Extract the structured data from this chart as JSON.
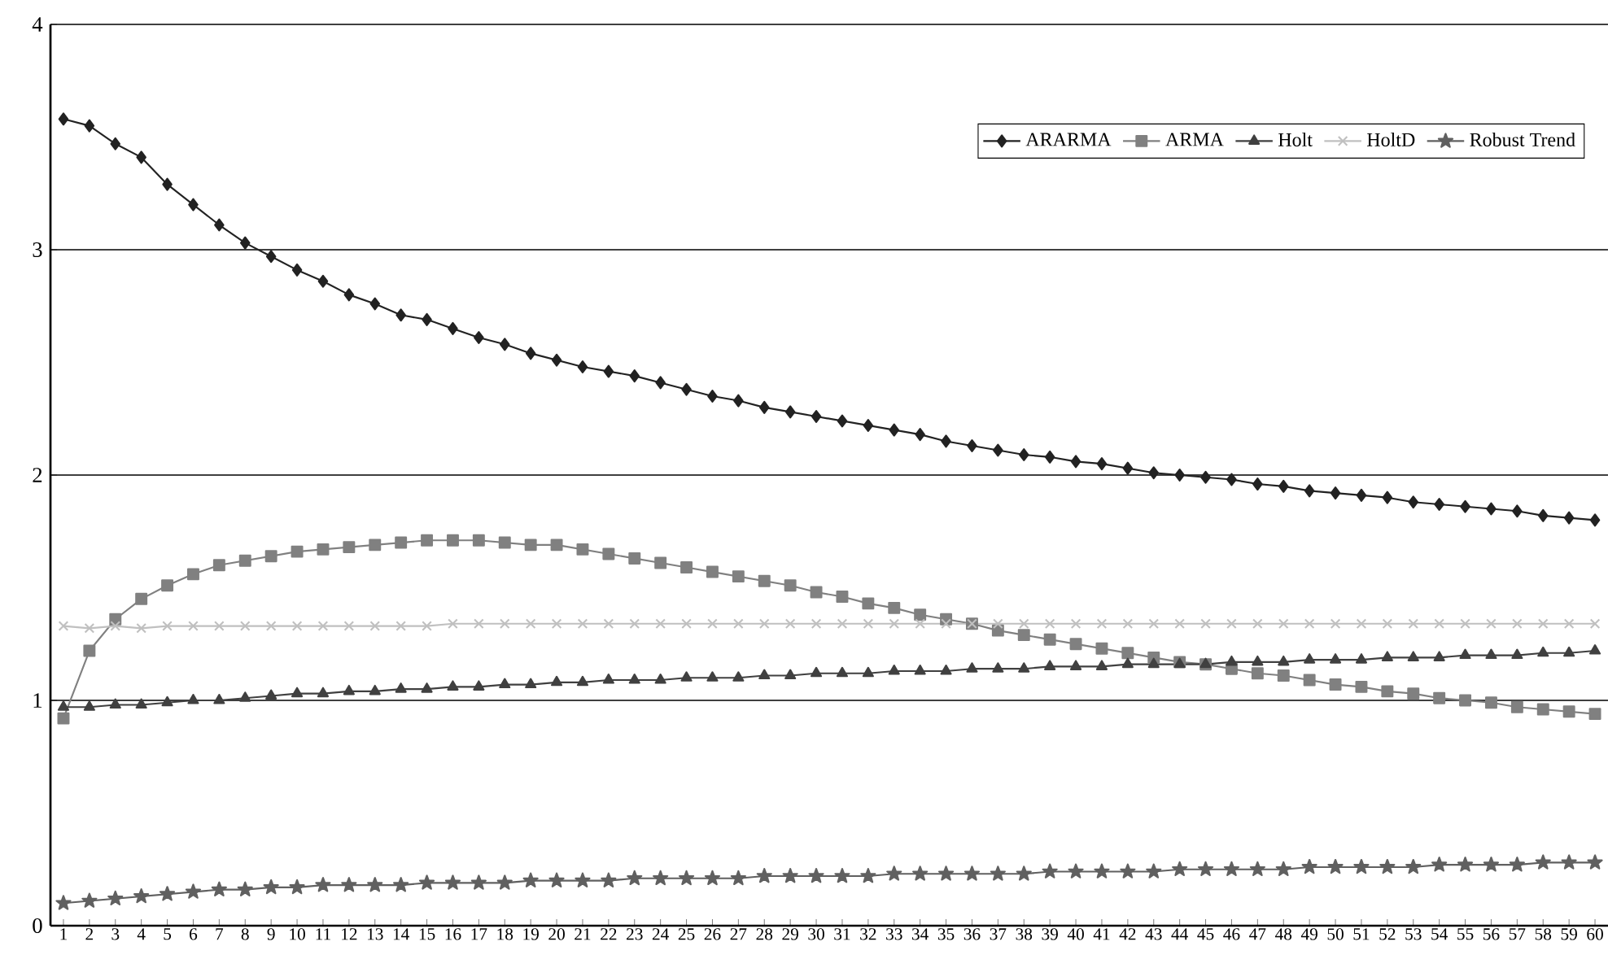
{
  "chart_data": {
    "type": "line",
    "categories": [
      "1",
      "2",
      "3",
      "4",
      "5",
      "6",
      "7",
      "8",
      "9",
      "10",
      "11",
      "12",
      "13",
      "14",
      "15",
      "16",
      "17",
      "18",
      "19",
      "20",
      "21",
      "22",
      "23",
      "24",
      "25",
      "26",
      "27",
      "28",
      "29",
      "30",
      "31",
      "32",
      "33",
      "34",
      "35",
      "36",
      "37",
      "38",
      "39",
      "40",
      "41",
      "42",
      "43",
      "44",
      "45",
      "46",
      "47",
      "48",
      "49",
      "50",
      "51",
      "52",
      "53",
      "54",
      "55",
      "56",
      "57",
      "58",
      "59",
      "60"
    ],
    "series": [
      {
        "name": "ARARMA",
        "color": "#222222",
        "marker": "diamond",
        "values": [
          3.58,
          3.55,
          3.47,
          3.41,
          3.29,
          3.2,
          3.11,
          3.03,
          2.97,
          2.91,
          2.86,
          2.8,
          2.76,
          2.71,
          2.69,
          2.65,
          2.61,
          2.58,
          2.54,
          2.51,
          2.48,
          2.46,
          2.44,
          2.41,
          2.38,
          2.35,
          2.33,
          2.3,
          2.28,
          2.26,
          2.24,
          2.22,
          2.2,
          2.18,
          2.15,
          2.13,
          2.11,
          2.09,
          2.08,
          2.06,
          2.05,
          2.03,
          2.01,
          2.0,
          1.99,
          1.98,
          1.96,
          1.95,
          1.93,
          1.92,
          1.91,
          1.9,
          1.88,
          1.87,
          1.86,
          1.85,
          1.84,
          1.82,
          1.81,
          1.8
        ]
      },
      {
        "name": "ARMA",
        "color": "#808080",
        "marker": "square",
        "values": [
          0.92,
          1.22,
          1.36,
          1.45,
          1.51,
          1.56,
          1.6,
          1.62,
          1.64,
          1.66,
          1.67,
          1.68,
          1.69,
          1.7,
          1.71,
          1.71,
          1.71,
          1.7,
          1.69,
          1.69,
          1.67,
          1.65,
          1.63,
          1.61,
          1.59,
          1.57,
          1.55,
          1.53,
          1.51,
          1.48,
          1.46,
          1.43,
          1.41,
          1.38,
          1.36,
          1.34,
          1.31,
          1.29,
          1.27,
          1.25,
          1.23,
          1.21,
          1.19,
          1.17,
          1.16,
          1.14,
          1.12,
          1.11,
          1.09,
          1.07,
          1.06,
          1.04,
          1.03,
          1.01,
          1.0,
          0.99,
          0.97,
          0.96,
          0.95,
          0.94
        ]
      },
      {
        "name": "Holt",
        "color": "#404040",
        "marker": "triangle",
        "values": [
          0.97,
          0.97,
          0.98,
          0.98,
          0.99,
          1.0,
          1.0,
          1.01,
          1.02,
          1.03,
          1.03,
          1.04,
          1.04,
          1.05,
          1.05,
          1.06,
          1.06,
          1.07,
          1.07,
          1.08,
          1.08,
          1.09,
          1.09,
          1.09,
          1.1,
          1.1,
          1.1,
          1.11,
          1.11,
          1.12,
          1.12,
          1.12,
          1.13,
          1.13,
          1.13,
          1.14,
          1.14,
          1.14,
          1.15,
          1.15,
          1.15,
          1.16,
          1.16,
          1.16,
          1.16,
          1.17,
          1.17,
          1.17,
          1.18,
          1.18,
          1.18,
          1.19,
          1.19,
          1.19,
          1.2,
          1.2,
          1.2,
          1.21,
          1.21,
          1.22
        ]
      },
      {
        "name": "HoltD",
        "color": "#c0c0c0",
        "marker": "cross",
        "values": [
          1.33,
          1.32,
          1.33,
          1.32,
          1.33,
          1.33,
          1.33,
          1.33,
          1.33,
          1.33,
          1.33,
          1.33,
          1.33,
          1.33,
          1.33,
          1.34,
          1.34,
          1.34,
          1.34,
          1.34,
          1.34,
          1.34,
          1.34,
          1.34,
          1.34,
          1.34,
          1.34,
          1.34,
          1.34,
          1.34,
          1.34,
          1.34,
          1.34,
          1.34,
          1.34,
          1.34,
          1.34,
          1.34,
          1.34,
          1.34,
          1.34,
          1.34,
          1.34,
          1.34,
          1.34,
          1.34,
          1.34,
          1.34,
          1.34,
          1.34,
          1.34,
          1.34,
          1.34,
          1.34,
          1.34,
          1.34,
          1.34,
          1.34,
          1.34,
          1.34
        ]
      },
      {
        "name": "Robust Trend",
        "color": "#606060",
        "marker": "star",
        "values": [
          0.1,
          0.11,
          0.12,
          0.13,
          0.14,
          0.15,
          0.16,
          0.16,
          0.17,
          0.17,
          0.18,
          0.18,
          0.18,
          0.18,
          0.19,
          0.19,
          0.19,
          0.19,
          0.2,
          0.2,
          0.2,
          0.2,
          0.21,
          0.21,
          0.21,
          0.21,
          0.21,
          0.22,
          0.22,
          0.22,
          0.22,
          0.22,
          0.23,
          0.23,
          0.23,
          0.23,
          0.23,
          0.23,
          0.24,
          0.24,
          0.24,
          0.24,
          0.24,
          0.25,
          0.25,
          0.25,
          0.25,
          0.25,
          0.26,
          0.26,
          0.26,
          0.26,
          0.26,
          0.27,
          0.27,
          0.27,
          0.27,
          0.28,
          0.28,
          0.28
        ]
      }
    ],
    "ylim": [
      0,
      4
    ],
    "yticks": [
      0,
      1,
      2,
      3,
      4
    ],
    "grid": "y",
    "legend": "top right",
    "line_style": "solid"
  }
}
